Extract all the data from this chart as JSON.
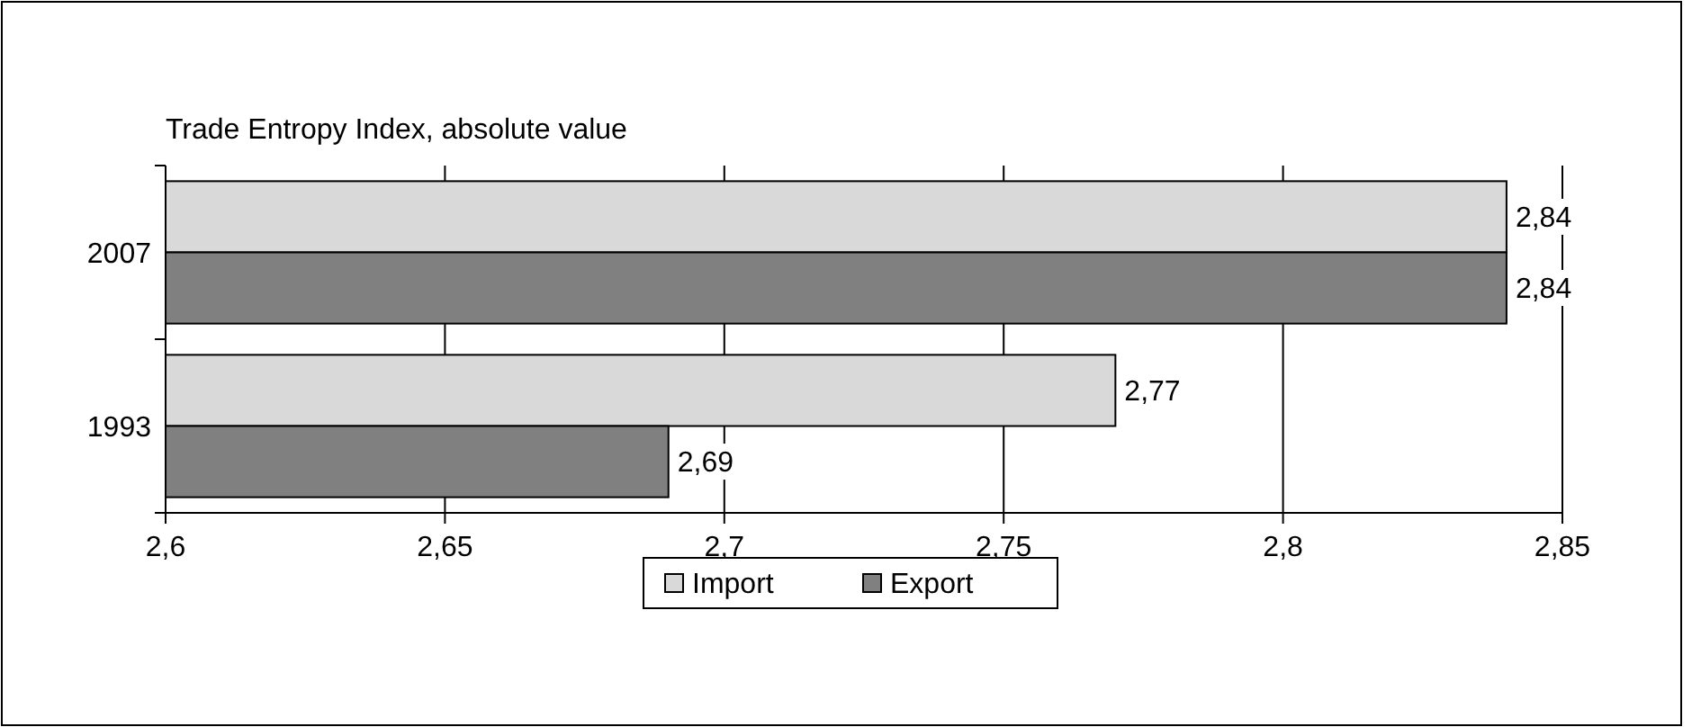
{
  "chart_data": {
    "type": "bar",
    "orientation": "horizontal",
    "title": "Trade Entropy Index, absolute value",
    "categories": [
      "2007",
      "1993"
    ],
    "series": [
      {
        "name": "Import",
        "color": "#d9d9d9",
        "values": [
          2.84,
          2.77
        ],
        "value_labels": [
          "2,84",
          "2,77"
        ]
      },
      {
        "name": "Export",
        "color": "#808080",
        "values": [
          2.84,
          2.69
        ],
        "value_labels": [
          "2,84",
          "2,69"
        ]
      }
    ],
    "xlim": [
      2.6,
      2.85
    ],
    "xticks": [
      {
        "value": 2.6,
        "label": "2,6"
      },
      {
        "value": 2.65,
        "label": "2,65"
      },
      {
        "value": 2.7,
        "label": "2,7"
      },
      {
        "value": 2.75,
        "label": "2,75"
      },
      {
        "value": 2.8,
        "label": "2,8"
      },
      {
        "value": 2.85,
        "label": "2,85"
      }
    ],
    "grid": "x",
    "legend": "bottom"
  }
}
